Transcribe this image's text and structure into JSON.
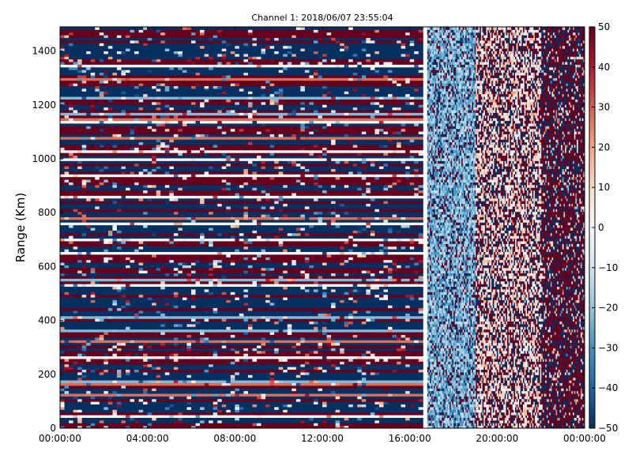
{
  "chart_data": {
    "type": "heatmap",
    "title": "Channel 1: 2018/06/07 23:55:04",
    "xlabel": "",
    "ylabel": "Range (Km)",
    "x_ticks": [
      "00:00:00",
      "04:00:00",
      "08:00:00",
      "12:00:00",
      "16:00:00",
      "20:00:00",
      "00:00:00"
    ],
    "x_range_hours": [
      0,
      24
    ],
    "y_ticks": [
      0,
      200,
      400,
      600,
      800,
      1000,
      1200,
      1400
    ],
    "ylim": [
      0,
      1490
    ],
    "colorbar": {
      "ticks": [
        50,
        40,
        30,
        20,
        10,
        0,
        -10,
        -20,
        -30,
        -40,
        -50
      ],
      "range": [
        -50,
        50
      ],
      "colormap": "RdBu_r"
    },
    "data_gaps": [
      [
        16.6,
        16.8
      ]
    ],
    "segments": [
      {
        "label": "00:00–16:40",
        "description": "horizontal banded pattern, values mostly saturated at ±50"
      },
      {
        "label": "16:50–19:00",
        "description": "values mostly -10 to -30"
      },
      {
        "label": "19:00–22:00",
        "description": "mixed values, lighter near 0 to +20 with scattered ±50"
      },
      {
        "label": "22:00–24:00",
        "description": "mostly saturated ±50"
      }
    ],
    "colors": {
      "min": "#053061",
      "mid": "#f7f7f7",
      "max": "#67001f"
    }
  }
}
